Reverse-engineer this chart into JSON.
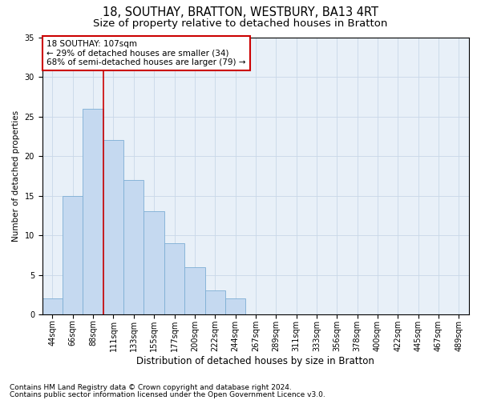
{
  "title1": "18, SOUTHAY, BRATTON, WESTBURY, BA13 4RT",
  "title2": "Size of property relative to detached houses in Bratton",
  "xlabel": "Distribution of detached houses by size in Bratton",
  "ylabel": "Number of detached properties",
  "footnote1": "Contains HM Land Registry data © Crown copyright and database right 2024.",
  "footnote2": "Contains public sector information licensed under the Open Government Licence v3.0.",
  "bar_labels": [
    "44sqm",
    "66sqm",
    "88sqm",
    "111sqm",
    "133sqm",
    "155sqm",
    "177sqm",
    "200sqm",
    "222sqm",
    "244sqm",
    "267sqm",
    "289sqm",
    "311sqm",
    "333sqm",
    "356sqm",
    "378sqm",
    "400sqm",
    "422sqm",
    "445sqm",
    "467sqm",
    "489sqm"
  ],
  "bar_values": [
    2,
    15,
    26,
    22,
    17,
    13,
    9,
    6,
    3,
    2,
    0,
    0,
    0,
    0,
    0,
    0,
    0,
    0,
    0,
    0,
    0
  ],
  "bar_color": "#c5d9f0",
  "bar_edgecolor": "#7daed4",
  "vline_x": 2.5,
  "vline_color": "#cc0000",
  "annotation_text": "18 SOUTHAY: 107sqm\n← 29% of detached houses are smaller (34)\n68% of semi-detached houses are larger (79) →",
  "annotation_box_color": "#cc0000",
  "ylim": [
    0,
    35
  ],
  "yticks": [
    0,
    5,
    10,
    15,
    20,
    25,
    30,
    35
  ],
  "bg_color": "#ffffff",
  "plot_bg_color": "#e8f0f8",
  "grid_color": "#c8d8e8",
  "title1_fontsize": 10.5,
  "title2_fontsize": 9.5,
  "xlabel_fontsize": 8.5,
  "ylabel_fontsize": 7.5,
  "tick_fontsize": 7,
  "annotation_fontsize": 7.5,
  "footnote_fontsize": 6.5
}
